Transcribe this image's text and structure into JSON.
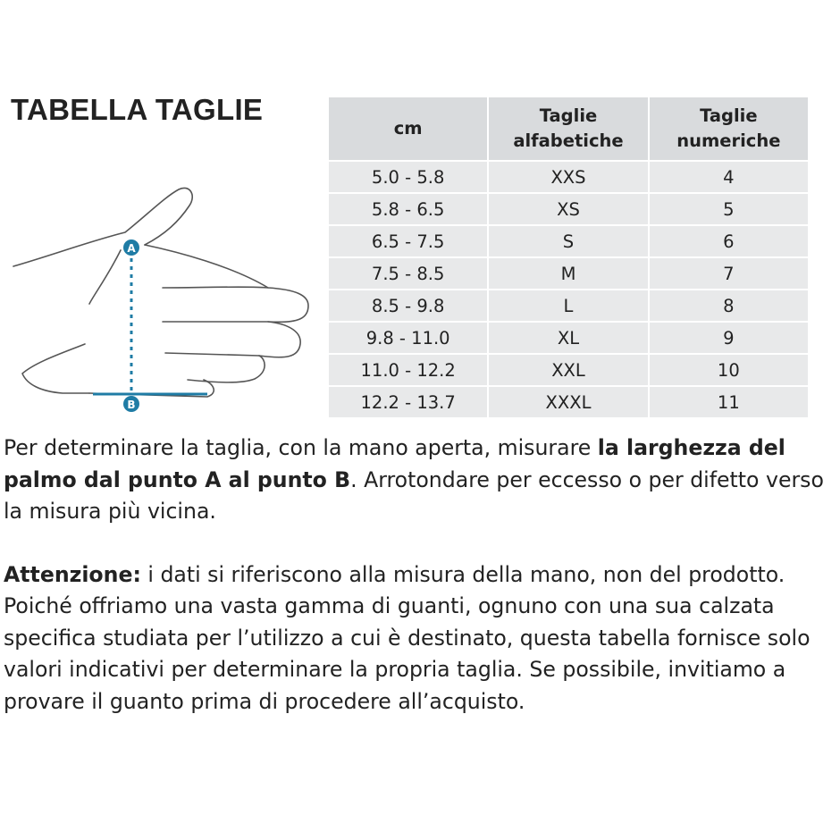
{
  "title": "TABELLA TAGLIE",
  "hand": {
    "label_a": "A",
    "label_b": "B"
  },
  "table": {
    "header": [
      "cm",
      "Taglie alfabetiche",
      "Taglie numeriche"
    ],
    "rows": [
      [
        "5.0 - 5.8",
        "XXS",
        "4"
      ],
      [
        "5.8 - 6.5",
        "XS",
        "5"
      ],
      [
        "6.5 - 7.5",
        "S",
        "6"
      ],
      [
        "7.5 - 8.5",
        "M",
        "7"
      ],
      [
        "8.5 - 9.8",
        "L",
        "8"
      ],
      [
        "9.8 - 11.0",
        "XL",
        "9"
      ],
      [
        "11.0 - 12.2",
        "XXL",
        "10"
      ],
      [
        "12.2 - 13.7",
        "XXXL",
        "11"
      ]
    ]
  },
  "paragraphs": [
    [
      {
        "text": "Per determinare la taglia, con la mano aperta, misurare ",
        "bold": false
      },
      {
        "text": "la larghezza del palmo dal punto A al punto B",
        "bold": true
      },
      {
        "text": ". Arrotondare per eccesso o per difetto verso la misura più vicina.",
        "bold": false
      }
    ],
    [
      {
        "text": "Attenzione:",
        "bold": true
      },
      {
        "text": " i dati si riferiscono alla misura della mano, non del prodotto. Poiché offriamo una vasta gamma di guanti, ognuno con una sua calzata specifica studiata per l’utilizzo a cui è destinato, questa tabella fornisce solo valori indicativi per determinare la propria taglia. Se possibile, invitiamo a provare il guanto prima di procedere all’acquisto.",
        "bold": false
      }
    ]
  ]
}
